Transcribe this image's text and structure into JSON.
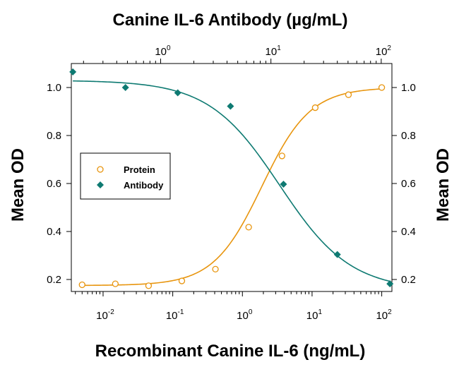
{
  "chart_data": {
    "type": "scatter",
    "top_axis_title": "Canine IL-6 Antibody (µg/mL)",
    "xlabel": "Recombinant Canine IL-6 (ng/mL)",
    "ylabel_left": "Mean OD",
    "ylabel_right": "Mean OD",
    "x_scale": "log",
    "xlim": [
      0.0035,
      140
    ],
    "ylim": [
      0.15,
      1.1
    ],
    "y_ticks": [
      0.2,
      0.4,
      0.6,
      0.8,
      1.0
    ],
    "y_tick_labels": [
      "0.2",
      "0.4",
      "0.6",
      "0.8",
      "1.0"
    ],
    "x_ticks": [
      0.01,
      0.1,
      1,
      10,
      100
    ],
    "x_tick_labels": [
      {
        "base": "10",
        "exp": "-2"
      },
      {
        "base": "10",
        "exp": "-1"
      },
      {
        "base": "10",
        "exp": "0"
      },
      {
        "base": "10",
        "exp": "1"
      },
      {
        "base": "10",
        "exp": "2"
      }
    ],
    "top_x_scale": "log",
    "top_xlim": [
      0.155,
      125
    ],
    "top_x_ticks": [
      1,
      10,
      100
    ],
    "top_x_tick_labels": [
      {
        "base": "10",
        "exp": "0"
      },
      {
        "base": "10",
        "exp": "1"
      },
      {
        "base": "10",
        "exp": "2"
      }
    ],
    "legend": {
      "position": "center-left"
    },
    "series": [
      {
        "name": "Protein",
        "axis": "bottom",
        "marker": "open-circle",
        "color": "#E8950E",
        "points": [
          {
            "x": 0.005,
            "y": 0.178
          },
          {
            "x": 0.015,
            "y": 0.182
          },
          {
            "x": 0.045,
            "y": 0.174
          },
          {
            "x": 0.135,
            "y": 0.194
          },
          {
            "x": 0.41,
            "y": 0.243
          },
          {
            "x": 1.23,
            "y": 0.418
          },
          {
            "x": 3.7,
            "y": 0.715
          },
          {
            "x": 11.1,
            "y": 0.916
          },
          {
            "x": 33.3,
            "y": 0.97
          },
          {
            "x": 100,
            "y": 1.0
          }
        ],
        "fit": {
          "bottom": 0.175,
          "top": 1.0,
          "ec50": 1.9,
          "hill": 1.25
        }
      },
      {
        "name": "Antibody",
        "axis": "top",
        "marker": "filled-diamond",
        "color": "#0E7A72",
        "points": [
          {
            "x": 0.16,
            "y": 1.065
          },
          {
            "x": 0.48,
            "y": 1.0
          },
          {
            "x": 1.43,
            "y": 0.978
          },
          {
            "x": 4.3,
            "y": 0.922
          },
          {
            "x": 13.0,
            "y": 0.597
          },
          {
            "x": 40.0,
            "y": 0.304
          },
          {
            "x": 120.0,
            "y": 0.182
          }
        ],
        "fit": {
          "bottom": 0.155,
          "top": 1.03,
          "ec50": 12.0,
          "hill": 1.35
        }
      }
    ]
  }
}
